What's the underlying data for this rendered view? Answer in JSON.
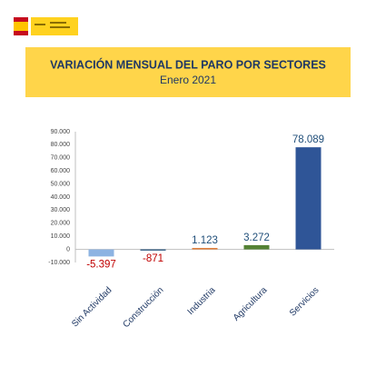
{
  "chart_data": {
    "type": "bar",
    "title": "VARIACIÓN MENSUAL DEL PARO POR SECTORES",
    "subtitle": "Enero 2021",
    "categories": [
      "Sin Actividad",
      "Construcción",
      "Industria",
      "Agricultura",
      "Servicios"
    ],
    "values": [
      -5397,
      -871,
      1123,
      3272,
      78089
    ],
    "value_labels": [
      "-5.397",
      "-871",
      "1.123",
      "3.272",
      "78.089"
    ],
    "colors": [
      "#8db3e2",
      "#1f4e79",
      "#e0813f",
      "#548235",
      "#2f5597"
    ],
    "ylim": [
      -10000,
      90000
    ],
    "yticks": [
      {
        "value": -10000,
        "label": "-10.000"
      },
      0,
      {
        "value": 10000,
        "label": "10.000"
      },
      {
        "value": 20000,
        "label": "20.000"
      },
      {
        "value": 30000,
        "label": "30.000"
      },
      {
        "value": 40000,
        "label": "40.000"
      },
      {
        "value": 50000,
        "label": "50.000"
      },
      {
        "value": 60000,
        "label": "60.000"
      },
      {
        "value": 70000,
        "label": "70.000"
      },
      {
        "value": 80000,
        "label": "80.000"
      },
      {
        "value": 90000,
        "label": "90.000"
      }
    ]
  }
}
